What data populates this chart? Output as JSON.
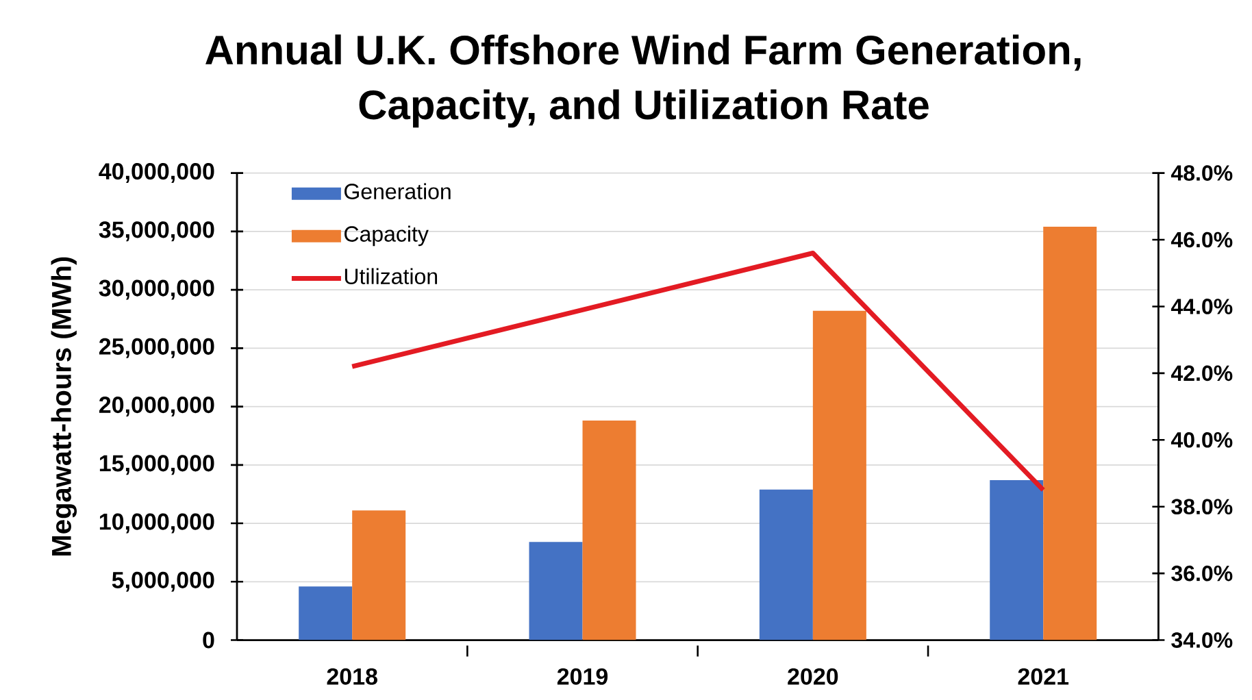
{
  "chart_data": {
    "type": "bar",
    "title": "Annual U.K. Offshore Wind Farm Generation, Capacity, and Utilization Rate",
    "ylabel": "Megawatt-hours (MWh)",
    "categories": [
      "2018",
      "2019",
      "2020",
      "2021"
    ],
    "series": [
      {
        "name": "Generation",
        "color": "#4472c4",
        "values": [
          4600000,
          8400000,
          12900000,
          13700000
        ]
      },
      {
        "name": "Capacity",
        "color": "#ed7d31",
        "values": [
          11100000,
          18800000,
          28200000,
          35400000
        ]
      },
      {
        "name": "Utilization",
        "type": "line",
        "axis": "y2",
        "color": "#e31b23",
        "values": [
          42.2,
          43.9,
          45.6,
          38.5
        ]
      }
    ],
    "ylim": [
      0,
      40000000
    ],
    "yticks": [
      0,
      {
        "value": 5000000,
        "label": "5,000,000"
      },
      {
        "value": 10000000,
        "label": "10,000,000"
      },
      {
        "value": 15000000,
        "label": "15,000,000"
      },
      {
        "value": 20000000,
        "label": "20,000,000"
      },
      {
        "value": 25000000,
        "label": "25,000,000"
      },
      {
        "value": 30000000,
        "label": "30,000,000"
      },
      {
        "value": 35000000,
        "label": "35,000,000"
      },
      {
        "value": 40000000,
        "label": "40,000,000"
      }
    ],
    "y2lim": [
      34,
      48
    ],
    "y2ticks": [
      {
        "value": 34,
        "label": "34.0%"
      },
      {
        "value": 36,
        "label": "36.0%"
      },
      {
        "value": 38,
        "label": "38.0%"
      },
      {
        "value": 40,
        "label": "40.0%"
      },
      {
        "value": 42,
        "label": "42.0%"
      },
      {
        "value": 44,
        "label": "44.0%"
      },
      {
        "value": 46,
        "label": "46.0%"
      },
      {
        "value": 48,
        "label": "48.0%"
      }
    ],
    "grid": "y",
    "legend": "top left"
  }
}
